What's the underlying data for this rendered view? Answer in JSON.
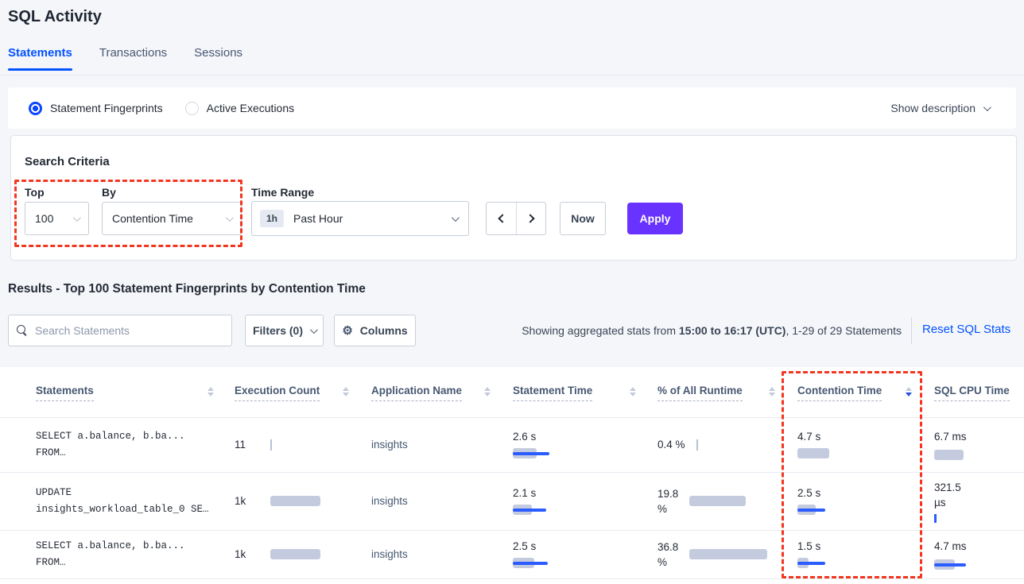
{
  "page": {
    "title": "SQL Activity"
  },
  "tabs": [
    {
      "label": "Statements",
      "active": true
    },
    {
      "label": "Transactions",
      "active": false
    },
    {
      "label": "Sessions",
      "active": false
    }
  ],
  "view_toggle": {
    "options": [
      {
        "label": "Statement Fingerprints",
        "selected": true
      },
      {
        "label": "Active Executions",
        "selected": false
      }
    ],
    "show_description": "Show description"
  },
  "search_criteria": {
    "title": "Search Criteria",
    "top_label": "Top",
    "top_value": "100",
    "by_label": "By",
    "by_value": "Contention Time",
    "time_range_label": "Time Range",
    "time_range_badge": "1h",
    "time_range_value": "Past Hour",
    "now_label": "Now",
    "apply_label": "Apply"
  },
  "results": {
    "heading": "Results - Top 100 Statement Fingerprints by Contention Time",
    "search_placeholder": "Search Statements",
    "filters_label": "Filters (0)",
    "columns_label": "Columns",
    "showing_prefix": "Showing aggregated stats from ",
    "showing_bold": "15:00 to 16:17 (UTC)",
    "showing_suffix": ", 1-29 of 29 Statements",
    "reset_label": "Reset SQL Stats"
  },
  "table": {
    "columns": [
      "Statements",
      "Execution Count",
      "Application Name",
      "Statement Time",
      "% of All Runtime",
      "Contention Time",
      "SQL CPU Time"
    ],
    "sort": {
      "column": "Contention Time",
      "direction": "desc"
    },
    "rows": [
      {
        "statement": [
          "SELECT a.balance, b.ba...",
          "FROM…"
        ],
        "execution_count": "11",
        "exec_bar": {
          "tick_gray": 2
        },
        "application_name": "insights",
        "statement_time": "2.6 s",
        "statement_time_bar": {
          "gray": 30,
          "line": 46
        },
        "pct_runtime": [
          "0.4 %",
          ""
        ],
        "pct_bar": {
          "tick_gray": 2
        },
        "contention_time": "4.7 s",
        "contention_bar": {
          "gray": 40
        },
        "sql_cpu": [
          "6.7 ms",
          ""
        ],
        "cpu_bar": {
          "gray": 37
        }
      },
      {
        "statement": [
          "UPDATE",
          "insights_workload_table_0 SE…"
        ],
        "execution_count": "1k",
        "exec_bar": {
          "gray": 63
        },
        "application_name": "insights",
        "statement_time": "2.1 s",
        "statement_time_bar": {
          "gray": 24,
          "line": 42
        },
        "pct_runtime": [
          "19.8",
          "%"
        ],
        "pct_bar": {
          "gray": 71
        },
        "contention_time": "2.5 s",
        "contention_bar": {
          "gray": 23,
          "line": 35
        },
        "sql_cpu": [
          "321.5",
          "µs"
        ],
        "cpu_bar": {
          "tick_blue": 3
        },
        "tall": true
      },
      {
        "statement": [
          "SELECT a.balance, b.ba...",
          "FROM…"
        ],
        "execution_count": "1k",
        "exec_bar": {
          "gray": 63
        },
        "application_name": "insights",
        "statement_time": "2.5 s",
        "statement_time_bar": {
          "gray": 27,
          "line": 44
        },
        "pct_runtime": [
          "36.8",
          "%"
        ],
        "pct_bar": {
          "gray": 98
        },
        "contention_time": "1.5 s",
        "contention_bar": {
          "gray": 14,
          "line": 35
        },
        "sql_cpu": [
          "4.7 ms",
          ""
        ],
        "cpu_bar": {
          "gray": 26,
          "line": 40
        }
      }
    ]
  },
  "colors": {
    "accent_blue": "#0352ff",
    "apply_purple": "#6933ff",
    "annotation_red": "#f2361f",
    "bar_gray": "#c5cbdf",
    "bar_blue": "#2a5cff"
  }
}
